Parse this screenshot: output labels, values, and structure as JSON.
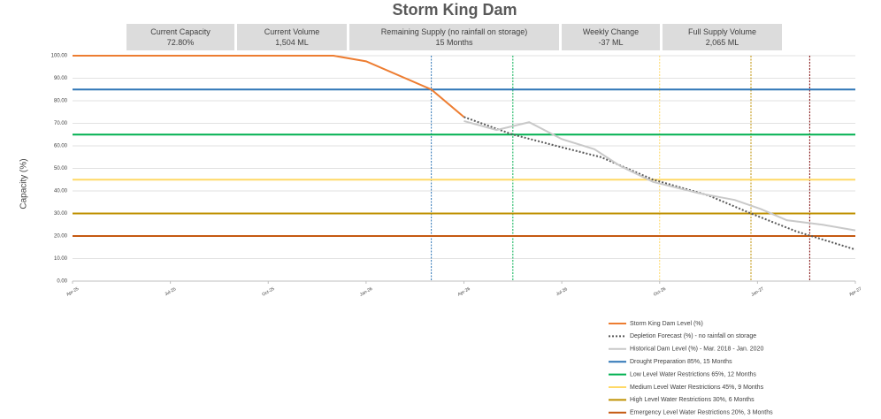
{
  "cards": [
    {
      "label": "Current Capacity",
      "value": "72.80%"
    },
    {
      "label": "Current Volume",
      "value": "1,504 ML"
    },
    {
      "label": "Remaining Supply (no rainfall on storage)",
      "value": "15 Months"
    },
    {
      "label": "Weekly Change",
      "value": "-37 ML"
    },
    {
      "label": "Full Supply Volume",
      "value": "2,065 ML"
    }
  ],
  "chart_data": {
    "type": "line",
    "title": "Storm King Dam",
    "y_label": "Capacity (%)",
    "xlim": [
      0,
      24
    ],
    "xticks": [
      {
        "value": 0,
        "label": "Apr-25"
      },
      {
        "value": 3,
        "label": "Jul-25"
      },
      {
        "value": 6,
        "label": "Oct-25"
      },
      {
        "value": 9,
        "label": "Jan-26"
      },
      {
        "value": 12,
        "label": "Apr-26"
      },
      {
        "value": 15,
        "label": "Jul-26"
      },
      {
        "value": 18,
        "label": "Oct-26"
      },
      {
        "value": 21,
        "label": "Jan-27"
      },
      {
        "value": 24,
        "label": "Apr-27"
      }
    ],
    "ylim": [
      0,
      100
    ],
    "yticks": [
      {
        "value": 0,
        "label": "0.00"
      },
      {
        "value": 10,
        "label": "10.00"
      },
      {
        "value": 20,
        "label": "20.00"
      },
      {
        "value": 30,
        "label": "30.00"
      },
      {
        "value": 40,
        "label": "40.00"
      },
      {
        "value": 50,
        "label": "50.00"
      },
      {
        "value": 60,
        "label": "60.00"
      },
      {
        "value": 70,
        "label": "70.00"
      },
      {
        "value": 80,
        "label": "80.00"
      },
      {
        "value": 90,
        "label": "90.00"
      },
      {
        "value": 100,
        "label": "100.00"
      }
    ],
    "grid": true,
    "series": [
      {
        "name": "Storm King Dam Level (%)",
        "color": "#ed7d31",
        "dash": false,
        "x": [
          0,
          8,
          9,
          11,
          12
        ],
        "values": [
          100,
          100,
          97.5,
          85,
          72.8
        ]
      },
      {
        "name": "Depletion Forecast (%) - no rainfall on storage",
        "color": "#595959",
        "dash": true,
        "x": [
          12,
          13.5,
          15.1,
          16.2,
          17.8,
          19.5,
          20.8,
          22.2,
          24
        ],
        "values": [
          72.8,
          65,
          59,
          55,
          45,
          38,
          30,
          22,
          14
        ]
      },
      {
        "name": "Historical Dam Level (%) - Mar. 2018 - Jan. 2020",
        "color": "#c9c9c9",
        "dash": false,
        "x": [
          12,
          13,
          14,
          15,
          16,
          16.8,
          17.8,
          19.2,
          20.3,
          21.1,
          21.9,
          23,
          24
        ],
        "values": [
          71,
          67,
          70.5,
          63,
          58.5,
          51,
          44,
          39,
          36,
          32,
          27,
          25,
          22.5
        ]
      }
    ],
    "reference_lines": [
      {
        "name": "Drought Preparation 85%, 15 Months",
        "color": "#2e75b6",
        "value": 85
      },
      {
        "name": "Low Level Water Restrictions 65%, 12 Months",
        "color": "#00b050",
        "value": 65
      },
      {
        "name": "Medium Level Water Restrictions 45%, 9 Months",
        "color": "#ffd966",
        "value": 45
      },
      {
        "name": "High Level Water Restrictions 30%, 6 Months",
        "color": "#bf9000",
        "value": 30
      },
      {
        "name": "Emergency Level Water Restrictions 20%, 3 Months",
        "color": "#c55a11",
        "value": 20
      }
    ],
    "vertical_lines": [
      {
        "x": 11,
        "color": "#2e75b6"
      },
      {
        "x": 13.5,
        "color": "#00b050"
      },
      {
        "x": 18,
        "color": "#ffd966"
      },
      {
        "x": 20.8,
        "color": "#bf9000"
      },
      {
        "x": 22.6,
        "color": "#7b0000"
      }
    ]
  }
}
